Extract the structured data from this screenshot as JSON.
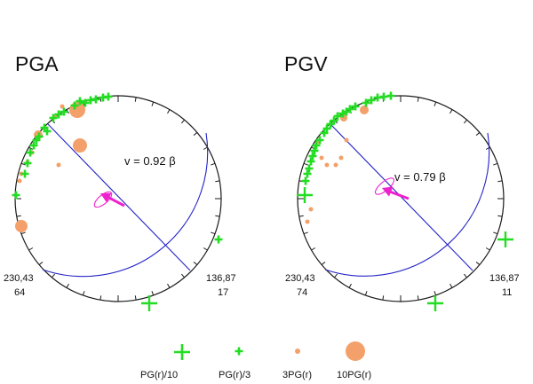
{
  "colors": {
    "net": "#1a1a1a",
    "great_circle": "#2323c8",
    "plus_marker": "#22dd22",
    "circle_marker": "#f4a06a",
    "velocity_arrow": "#ee22cc"
  },
  "panels": [
    {
      "title": "PGA",
      "velocity_label": "v = 0.92 β",
      "left_label": {
        "line1": "230,43",
        "line2": "64"
      },
      "right_label": {
        "line1": "136,87",
        "line2": "17"
      }
    },
    {
      "title": "PGV",
      "velocity_label": "v = 0.79 β",
      "left_label": {
        "line1": "230,43",
        "line2": "74"
      },
      "right_label": {
        "line1": "136,87",
        "line2": "11"
      }
    }
  ],
  "legend": [
    {
      "symbol": "plus-large",
      "label": "PG(r)/10"
    },
    {
      "symbol": "plus-small",
      "label": "PG(r)/3"
    },
    {
      "symbol": "circle-small",
      "label": "3PG(r)"
    },
    {
      "symbol": "circle-large",
      "label": "10PG(r)"
    }
  ]
}
